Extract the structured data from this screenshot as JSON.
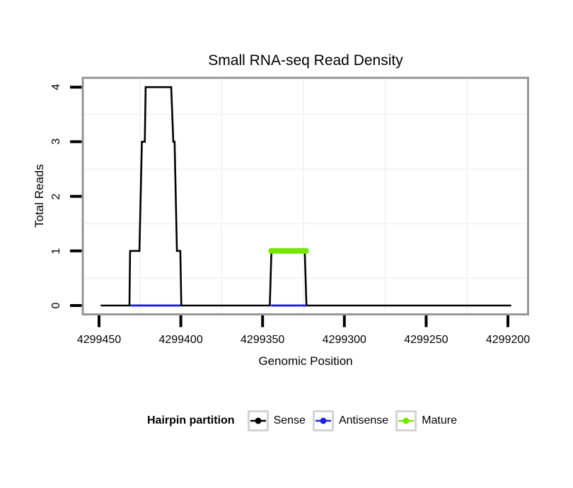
{
  "chart_data": {
    "type": "line",
    "title": "Small RNA-seq Read Density",
    "xlabel": "Genomic Position",
    "ylabel": "Total Reads",
    "x_axis_reversed": true,
    "x_ticks": [
      4299450,
      4299400,
      4299350,
      4299300,
      4299250,
      4299200
    ],
    "x_tick_labels": [
      "4299450",
      "4299400",
      "4299350",
      "4299300",
      "4299250",
      "4299200"
    ],
    "y_ticks": [
      0,
      1,
      2,
      3,
      4
    ],
    "y_tick_labels": [
      "0",
      "1",
      "2",
      "3",
      "4"
    ],
    "xlim": [
      4299460,
      4299187
    ],
    "ylim": [
      -0.17,
      4.18
    ],
    "grid": {
      "minor_x": [
        4299425,
        4299375,
        4299325,
        4299275,
        4299225
      ],
      "minor_y": [
        0.5,
        1.5,
        2.5,
        3.5
      ],
      "color": "#f4f4f4"
    },
    "panel_border_color": "#909090",
    "tick_color": "#000000",
    "series": [
      {
        "name": "Sense",
        "color": "#000000",
        "kind": "step_line",
        "points": [
          [
            4299449.0,
            0
          ],
          [
            4299431.4,
            0
          ],
          [
            4299431.0,
            1
          ],
          [
            4299425.3,
            1
          ],
          [
            4299423.8,
            3
          ],
          [
            4299422.0,
            3
          ],
          [
            4299421.5,
            4
          ],
          [
            4299405.9,
            4
          ],
          [
            4299404.6,
            3
          ],
          [
            4299403.8,
            3
          ],
          [
            4299402.4,
            1
          ],
          [
            4299400.3,
            1
          ],
          [
            4299399.7,
            0
          ],
          [
            4299345.6,
            0
          ],
          [
            4299344.6,
            1
          ],
          [
            4299324.2,
            1
          ],
          [
            4299323.2,
            0
          ],
          [
            4299198.0,
            0
          ]
        ]
      },
      {
        "name": "Antisense",
        "color": "#2222de",
        "kind": "segments",
        "level": 0,
        "segments": [
          [
            4299431.0,
            4299400.3
          ],
          [
            4299344.8,
            4299323.2
          ]
        ]
      },
      {
        "name": "Mature",
        "color": "#76e600",
        "kind": "segments",
        "level": 1,
        "segments": [
          [
            4299344.8,
            4299323.4
          ]
        ]
      }
    ],
    "legend": {
      "title": "Hairpin partition",
      "position": "bottom",
      "entries": [
        {
          "label": "Sense",
          "color": "#000000"
        },
        {
          "label": "Antisense",
          "color": "#2222de"
        },
        {
          "label": "Mature",
          "color": "#76e600"
        }
      ]
    }
  }
}
